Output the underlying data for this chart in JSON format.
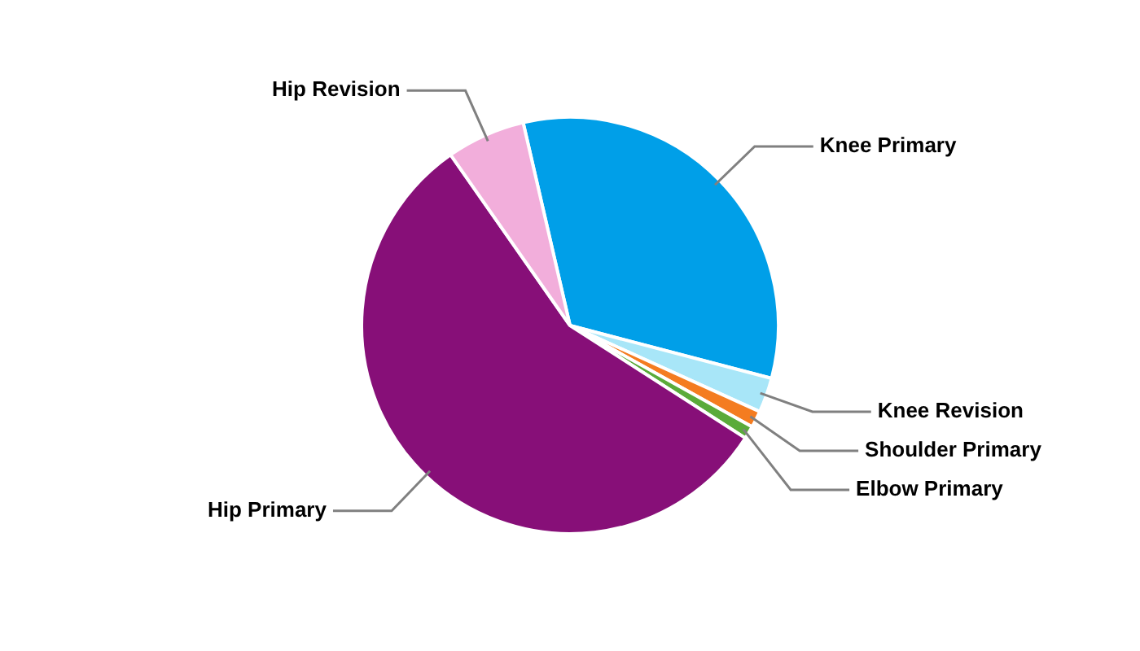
{
  "chart_data": {
    "type": "pie",
    "categories": [
      "Knee Primary",
      "Knee Revision",
      "Shoulder Primary",
      "Elbow Primary",
      "Hip Primary",
      "Hip Revision"
    ],
    "values": [
      32.7,
      2.7,
      1.3,
      1.0,
      56.2,
      6.1
    ],
    "colors": [
      "#009fe8",
      "#a8e6f8",
      "#f47c20",
      "#5aab3a",
      "#870f78",
      "#f2aedb"
    ],
    "legend": false
  }
}
